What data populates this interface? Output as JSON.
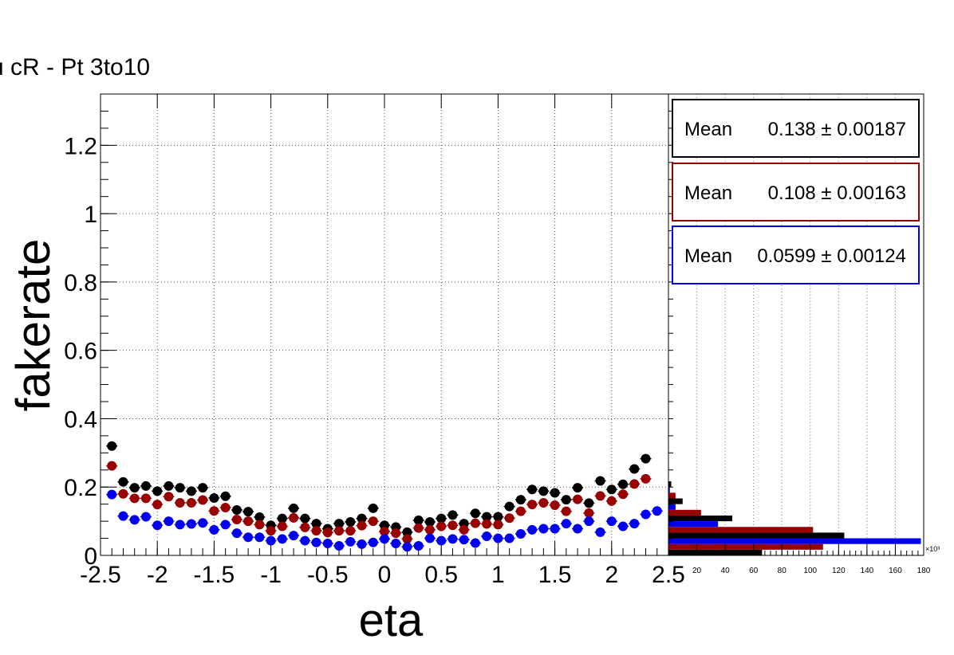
{
  "title": "u cR - Pt 3to10",
  "chart_data": [
    {
      "type": "scatter",
      "xlabel": "eta",
      "ylabel": "fakerate",
      "xlim": [
        -2.5,
        2.5
      ],
      "ylim": [
        0,
        1.35
      ],
      "x_ticks": [
        "-2.5",
        "-2",
        "-1.5",
        "-1",
        "-0.5",
        "0",
        "0.5",
        "1",
        "1.5",
        "2",
        "2.5"
      ],
      "y_ticks": [
        "0",
        "0.2",
        "0.4",
        "0.6",
        "0.8",
        "1",
        "1.2"
      ],
      "grid": true,
      "colors": [
        "#000000",
        "#990000",
        "#0000ee"
      ],
      "x": [
        -2.4,
        -2.3,
        -2.2,
        -2.1,
        -2.0,
        -1.9,
        -1.8,
        -1.7,
        -1.6,
        -1.5,
        -1.4,
        -1.3,
        -1.2,
        -1.1,
        -1.0,
        -0.9,
        -0.8,
        -0.7,
        -0.6,
        -0.5,
        -0.4,
        -0.3,
        -0.2,
        -0.1,
        0.0,
        0.1,
        0.2,
        0.3,
        0.4,
        0.5,
        0.6,
        0.7,
        0.8,
        0.9,
        1.0,
        1.1,
        1.2,
        1.3,
        1.4,
        1.5,
        1.6,
        1.7,
        1.8,
        1.9,
        2.0,
        2.1,
        2.2,
        2.3,
        2.4
      ],
      "series": [
        {
          "color": "#000000",
          "values": [
            0.32,
            0.215,
            0.198,
            0.203,
            0.188,
            0.203,
            0.198,
            0.188,
            0.198,
            0.168,
            0.173,
            0.133,
            0.128,
            0.112,
            0.088,
            0.108,
            0.138,
            0.108,
            0.093,
            0.078,
            0.093,
            0.098,
            0.108,
            0.138,
            0.088,
            0.083,
            0.068,
            0.103,
            0.098,
            0.108,
            0.118,
            0.093,
            0.123,
            0.113,
            0.113,
            0.143,
            0.163,
            0.193,
            0.188,
            0.183,
            0.163,
            0.198,
            0.153,
            0.218,
            0.193,
            0.208,
            0.253,
            0.283,
            0.0
          ]
        },
        {
          "color": "#990000",
          "values": [
            0.262,
            0.18,
            0.167,
            0.167,
            0.149,
            0.172,
            0.154,
            0.154,
            0.162,
            0.13,
            0.14,
            0.105,
            0.1,
            0.09,
            0.072,
            0.085,
            0.11,
            0.082,
            0.072,
            0.067,
            0.072,
            0.072,
            0.087,
            0.1,
            0.07,
            0.065,
            0.048,
            0.08,
            0.075,
            0.085,
            0.088,
            0.075,
            0.094,
            0.092,
            0.09,
            0.109,
            0.129,
            0.149,
            0.154,
            0.147,
            0.129,
            0.164,
            0.124,
            0.174,
            0.159,
            0.179,
            0.209,
            0.224,
            0.0
          ]
        },
        {
          "color": "#0000ee",
          "values": [
            0.178,
            0.115,
            0.104,
            0.113,
            0.088,
            0.1,
            0.09,
            0.092,
            0.095,
            0.075,
            0.09,
            0.065,
            0.053,
            0.053,
            0.043,
            0.048,
            0.058,
            0.043,
            0.038,
            0.035,
            0.028,
            0.04,
            0.033,
            0.038,
            0.048,
            0.035,
            0.025,
            0.028,
            0.05,
            0.043,
            0.048,
            0.046,
            0.036,
            0.056,
            0.05,
            0.05,
            0.063,
            0.075,
            0.078,
            0.078,
            0.093,
            0.078,
            0.1,
            0.068,
            0.1,
            0.085,
            0.093,
            0.12,
            0.13
          ]
        }
      ]
    },
    {
      "type": "bar",
      "orientation": "horizontal",
      "x_ticks": [
        "20",
        "40",
        "60",
        "80",
        "100",
        "120",
        "140",
        "160",
        "180"
      ],
      "x_multiplier_label": "×10³",
      "xlim": [
        0,
        180
      ],
      "y_bins": [
        0,
        0.05,
        0.1,
        0.15,
        0.2,
        0.25,
        0.3,
        0.35
      ],
      "series": [
        {
          "color": "#000000",
          "values": [
            66,
            124,
            45,
            10,
            2,
            0,
            0
          ]
        },
        {
          "color": "#990000",
          "values": [
            109,
            102,
            23,
            5,
            0,
            0,
            0
          ]
        },
        {
          "color": "#0000ee",
          "values": [
            178,
            35,
            5,
            1,
            0,
            0,
            0
          ]
        }
      ]
    }
  ],
  "stats_boxes": [
    {
      "label": "Mean",
      "value": "0.138 ± 0.00187",
      "color": "#000000"
    },
    {
      "label": "Mean",
      "value": "0.108 ± 0.00163",
      "color": "#990000"
    },
    {
      "label": "Mean",
      "value": "0.0599 ± 0.00124",
      "color": "#0000ee"
    }
  ]
}
